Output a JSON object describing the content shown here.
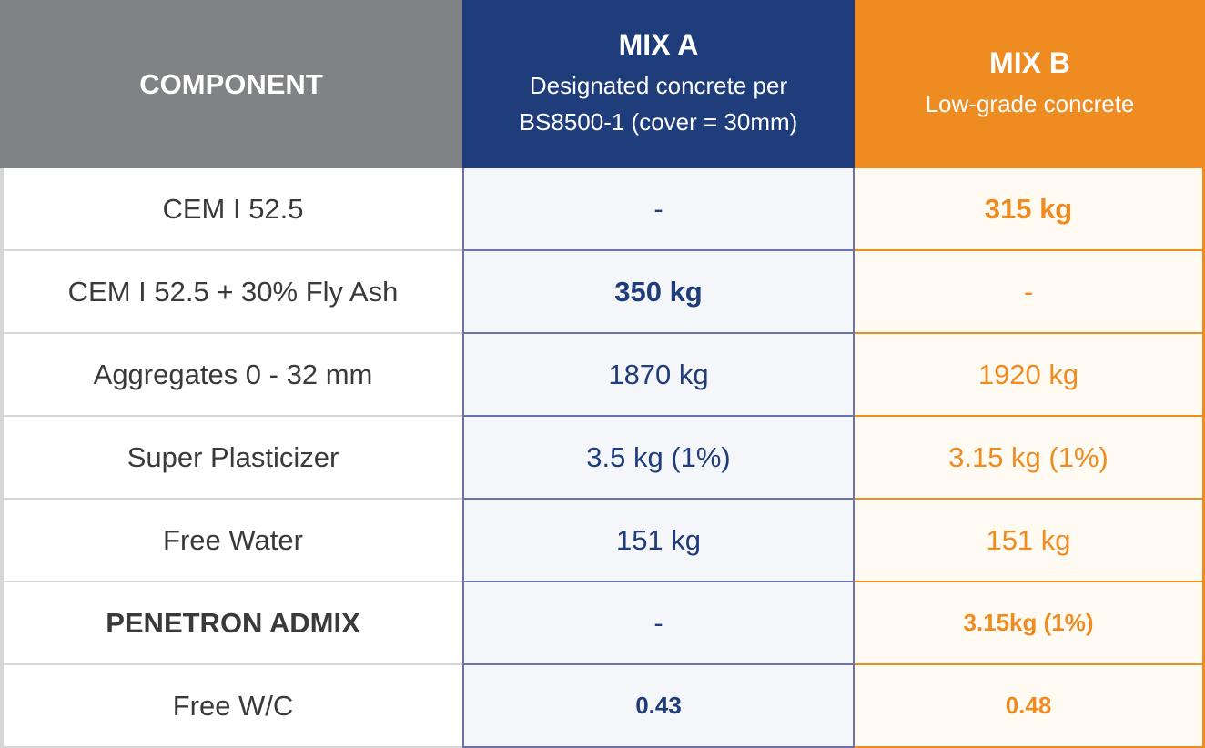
{
  "header": {
    "component": "COMPONENT",
    "mix_a": {
      "title": "MIX A",
      "subtitle": "Designated concrete per BS8500-1 (cover = 30mm)"
    },
    "mix_b": {
      "title": "MIX B",
      "subtitle": "Low-grade concrete"
    }
  },
  "table": {
    "rows": [
      [
        "CEM I 52.5",
        "-",
        "315 kg"
      ],
      [
        "CEM I 52.5 + 30% Fly Ash",
        "350 kg",
        "-"
      ],
      [
        "Aggregates 0 - 32 mm",
        "1870 kg",
        "1920 kg"
      ],
      [
        "Super Plasticizer",
        "3.5 kg (1%)",
        "3.15 kg (1%)"
      ],
      [
        "Free Water",
        "151 kg",
        "151 kg"
      ],
      [
        "PENETRON ADMIX",
        "-",
        "3.15kg (1%)"
      ],
      [
        "Free W/C",
        "0.43",
        "0.48"
      ]
    ]
  }
}
